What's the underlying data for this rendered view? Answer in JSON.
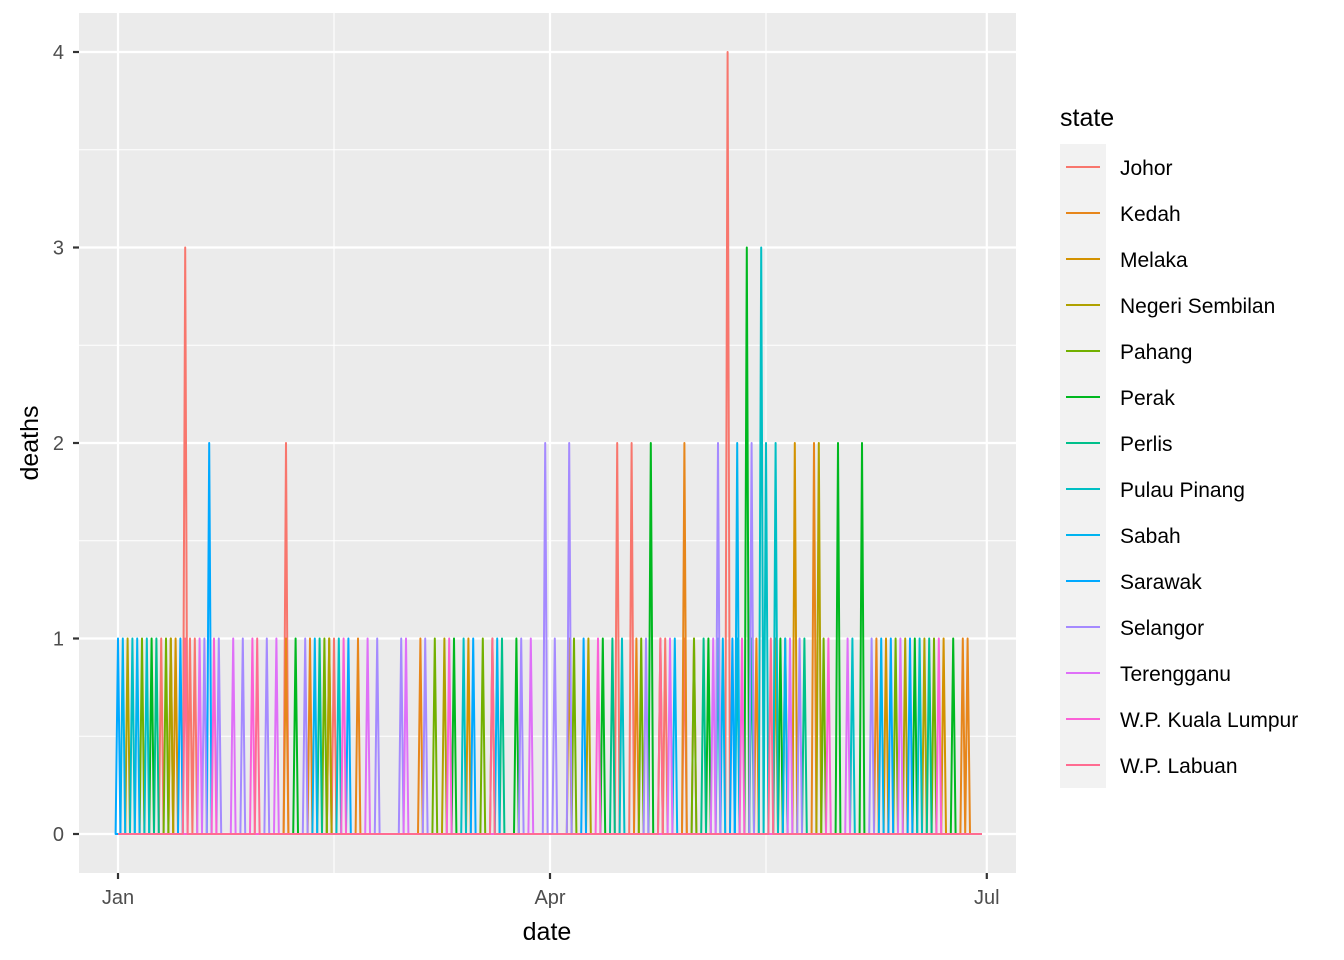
{
  "chart_data": {
    "type": "line",
    "xlabel": "date",
    "ylabel": "deaths",
    "xlim": [
      "2021-01-01",
      "2021-06-30"
    ],
    "ylim": [
      0,
      4
    ],
    "y_ticks": [
      0,
      1,
      2,
      3,
      4
    ],
    "x_ticks": [
      {
        "date": "2021-01-01",
        "label": "Jan"
      },
      {
        "date": "2021-04-01",
        "label": "Apr"
      },
      {
        "date": "2021-07-01",
        "label": "Jul"
      }
    ],
    "x_minor_ticks": [
      "2021-02-15",
      "2021-05-16"
    ],
    "grid": true,
    "legend": {
      "title": "state",
      "position": "right"
    },
    "series": [
      {
        "name": "Johor",
        "color": "#F8766D",
        "points": [
          [
            "2021-01-15",
            3
          ],
          [
            "2021-02-05",
            2
          ],
          [
            "2021-04-15",
            2
          ],
          [
            "2021-04-18",
            2
          ],
          [
            "2021-05-08",
            4
          ],
          [
            "2021-01-10",
            1
          ],
          [
            "2021-01-16",
            1
          ],
          [
            "2021-01-17",
            1
          ],
          [
            "2021-02-15",
            1
          ],
          [
            "2021-04-25",
            1
          ],
          [
            "2021-04-29",
            1
          ],
          [
            "2021-05-01",
            1
          ]
        ]
      },
      {
        "name": "Kedah",
        "color": "#E7861B",
        "points": [
          [
            "2021-04-29",
            2
          ],
          [
            "2021-05-26",
            2
          ],
          [
            "2021-01-12",
            1
          ],
          [
            "2021-02-05",
            1
          ],
          [
            "2021-02-10",
            1
          ],
          [
            "2021-02-20",
            1
          ],
          [
            "2021-03-05",
            1
          ],
          [
            "2021-04-19",
            1
          ],
          [
            "2021-05-14",
            1
          ],
          [
            "2021-06-08",
            1
          ],
          [
            "2021-06-26",
            1
          ],
          [
            "2021-06-27",
            1
          ]
        ]
      },
      {
        "name": "Melaka",
        "color": "#D39200",
        "points": [
          [
            "2021-05-22",
            2
          ],
          [
            "2021-01-13",
            1
          ],
          [
            "2021-02-14",
            1
          ],
          [
            "2021-03-15",
            1
          ],
          [
            "2021-04-05",
            1
          ],
          [
            "2021-04-24",
            1
          ],
          [
            "2021-05-18",
            1
          ],
          [
            "2021-06-10",
            1
          ],
          [
            "2021-06-22",
            1
          ]
        ]
      },
      {
        "name": "Negeri Sembilan",
        "color": "#AFA100",
        "points": [
          [
            "2021-05-27",
            2
          ],
          [
            "2021-01-03",
            1
          ],
          [
            "2021-01-12",
            1
          ],
          [
            "2021-02-14",
            1
          ],
          [
            "2021-03-10",
            1
          ],
          [
            "2021-03-20",
            1
          ],
          [
            "2021-04-09",
            1
          ],
          [
            "2021-05-20",
            1
          ],
          [
            "2021-06-14",
            1
          ],
          [
            "2021-06-18",
            1
          ]
        ]
      },
      {
        "name": "Pahang",
        "color": "#72B000",
        "points": [
          [
            "2021-01-06",
            1
          ],
          [
            "2021-01-11",
            1
          ],
          [
            "2021-02-13",
            1
          ],
          [
            "2021-03-08",
            1
          ],
          [
            "2021-03-18",
            1
          ],
          [
            "2021-04-06",
            1
          ],
          [
            "2021-04-20",
            1
          ],
          [
            "2021-05-01",
            1
          ],
          [
            "2021-05-28",
            1
          ],
          [
            "2021-06-12",
            1
          ],
          [
            "2021-06-20",
            1
          ]
        ]
      },
      {
        "name": "Perak",
        "color": "#00B81F",
        "points": [
          [
            "2021-05-12",
            3
          ],
          [
            "2021-04-22",
            2
          ],
          [
            "2021-05-31",
            2
          ],
          [
            "2021-06-05",
            2
          ],
          [
            "2021-01-08",
            1
          ],
          [
            "2021-02-07",
            1
          ],
          [
            "2021-03-12",
            1
          ],
          [
            "2021-03-25",
            1
          ],
          [
            "2021-04-12",
            1
          ],
          [
            "2021-05-04",
            1
          ],
          [
            "2021-05-19",
            1
          ],
          [
            "2021-06-16",
            1
          ],
          [
            "2021-06-24",
            1
          ]
        ]
      },
      {
        "name": "Perlis",
        "color": "#00C08B",
        "points": [
          [
            "2021-01-09",
            1
          ],
          [
            "2021-02-12",
            1
          ],
          [
            "2021-03-22",
            1
          ],
          [
            "2021-04-14",
            1
          ],
          [
            "2021-05-03",
            1
          ],
          [
            "2021-05-13",
            1
          ],
          [
            "2021-05-24",
            1
          ],
          [
            "2021-06-19",
            1
          ]
        ]
      },
      {
        "name": "Pulau Pinang",
        "color": "#00BFC4",
        "points": [
          [
            "2021-05-15",
            3
          ],
          [
            "2021-05-16",
            2
          ],
          [
            "2021-05-18",
            2
          ],
          [
            "2021-01-04",
            1
          ],
          [
            "2021-01-07",
            1
          ],
          [
            "2021-02-16",
            1
          ],
          [
            "2021-03-14",
            1
          ],
          [
            "2021-04-16",
            1
          ],
          [
            "2021-05-06",
            1
          ],
          [
            "2021-05-10",
            1
          ],
          [
            "2021-06-03",
            1
          ],
          [
            "2021-06-17",
            1
          ]
        ]
      },
      {
        "name": "Sabah",
        "color": "#00B4F0",
        "points": [
          [
            "2021-05-10",
            2
          ],
          [
            "2021-01-02",
            1
          ],
          [
            "2021-01-05",
            1
          ],
          [
            "2021-02-11",
            1
          ],
          [
            "2021-03-21",
            1
          ],
          [
            "2021-04-27",
            1
          ],
          [
            "2021-05-07",
            1
          ],
          [
            "2021-05-20",
            1
          ],
          [
            "2021-06-09",
            1
          ]
        ]
      },
      {
        "name": "Sarawak",
        "color": "#00A9FF",
        "points": [
          [
            "2021-01-20",
            2
          ],
          [
            "2021-01-01",
            1
          ],
          [
            "2021-01-14",
            1
          ],
          [
            "2021-02-18",
            1
          ],
          [
            "2021-03-16",
            1
          ],
          [
            "2021-04-08",
            1
          ],
          [
            "2021-05-09",
            1
          ],
          [
            "2021-06-11",
            1
          ],
          [
            "2021-06-15",
            1
          ]
        ]
      },
      {
        "name": "Selangor",
        "color": "#A58AFF",
        "points": [
          [
            "2021-03-31",
            2
          ],
          [
            "2021-04-05",
            2
          ],
          [
            "2021-05-06",
            2
          ],
          [
            "2021-05-13",
            2
          ],
          [
            "2021-01-19",
            1
          ],
          [
            "2021-01-22",
            1
          ],
          [
            "2021-01-27",
            1
          ],
          [
            "2021-02-01",
            1
          ],
          [
            "2021-02-09",
            1
          ],
          [
            "2021-02-24",
            1
          ],
          [
            "2021-03-01",
            1
          ],
          [
            "2021-03-06",
            1
          ],
          [
            "2021-03-26",
            1
          ],
          [
            "2021-04-02",
            1
          ],
          [
            "2021-04-21",
            1
          ],
          [
            "2021-05-23",
            1
          ],
          [
            "2021-06-07",
            1
          ]
        ]
      },
      {
        "name": "Terengganu",
        "color": "#DF70F8",
        "points": [
          [
            "2021-01-18",
            1
          ],
          [
            "2021-01-25",
            1
          ],
          [
            "2021-02-03",
            1
          ],
          [
            "2021-02-22",
            1
          ],
          [
            "2021-03-02",
            1
          ],
          [
            "2021-03-28",
            1
          ],
          [
            "2021-04-26",
            1
          ],
          [
            "2021-05-05",
            1
          ],
          [
            "2021-05-21",
            1
          ],
          [
            "2021-06-02",
            1
          ],
          [
            "2021-06-13",
            1
          ]
        ]
      },
      {
        "name": "W.P. Kuala Lumpur",
        "color": "#FB61D7",
        "points": [
          [
            "2021-01-21",
            1
          ],
          [
            "2021-01-29",
            1
          ],
          [
            "2021-02-17",
            1
          ],
          [
            "2021-03-11",
            1
          ],
          [
            "2021-04-11",
            1
          ],
          [
            "2021-05-11",
            1
          ],
          [
            "2021-05-29",
            1
          ],
          [
            "2021-06-21",
            1
          ]
        ]
      },
      {
        "name": "W.P. Labuan",
        "color": "#FF6C91",
        "points": [
          [
            "2021-01-15",
            1
          ],
          [
            "2021-01-30",
            1
          ],
          [
            "2021-03-20",
            1
          ],
          [
            "2021-04-24",
            1
          ],
          [
            "2021-05-17",
            1
          ]
        ]
      }
    ]
  }
}
